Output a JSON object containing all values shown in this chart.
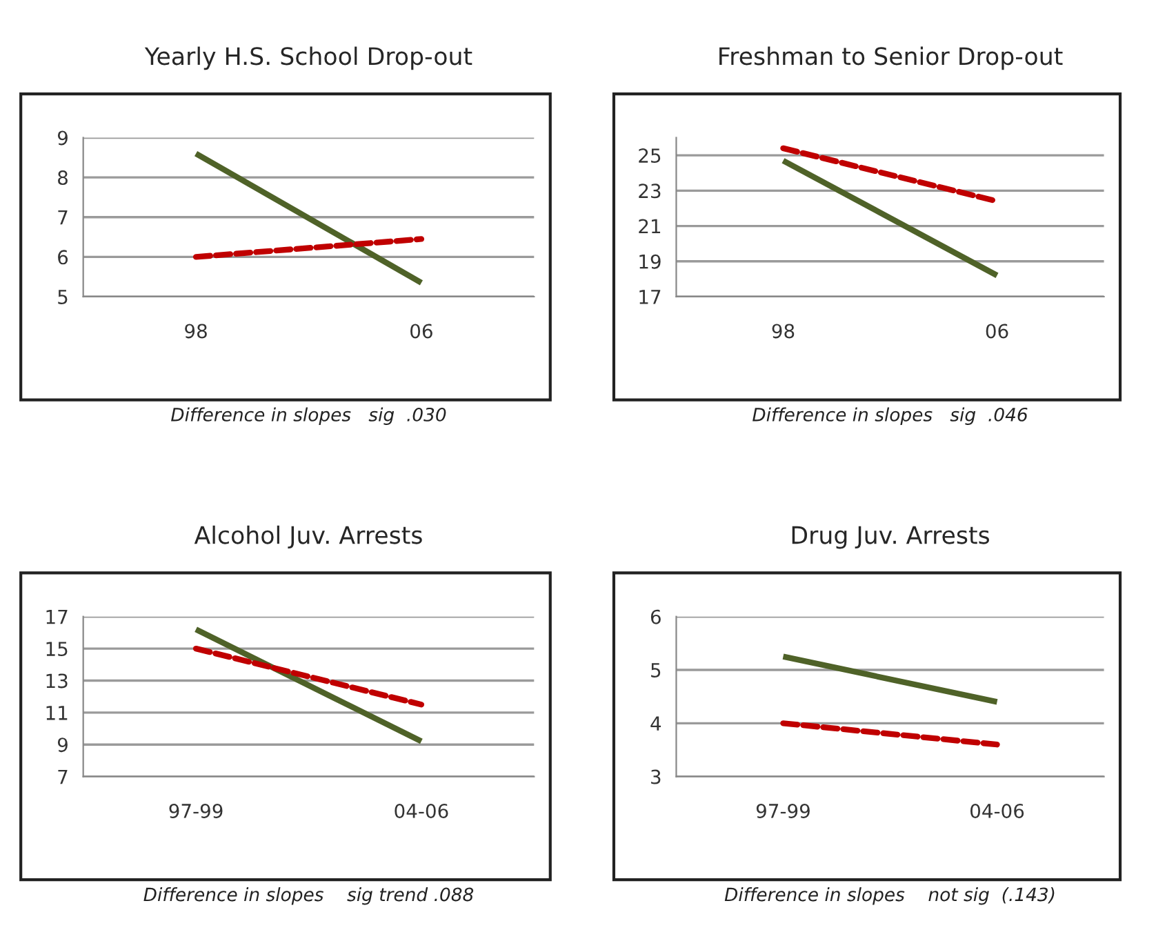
{
  "chart_data": [
    {
      "type": "line",
      "title": "Yearly H.S. School Drop-out",
      "categories": [
        "98",
        "06"
      ],
      "ylim": [
        5,
        9
      ],
      "yticks": [
        5,
        6,
        7,
        8,
        9
      ],
      "grid": "y",
      "annotations": [
        "Difference in slopes   sig  .030"
      ],
      "series": [
        {
          "color": "#4f6228",
          "values": [
            8.6,
            5.35
          ],
          "line_style": "solid"
        },
        {
          "color": "#c00000",
          "values": [
            6.0,
            6.45
          ],
          "line_style": "dashed"
        }
      ]
    },
    {
      "type": "line",
      "title": "Freshman to Senior Drop-out",
      "categories": [
        "98",
        "06"
      ],
      "ylim": [
        17,
        26
      ],
      "yticks": [
        17,
        19,
        21,
        23,
        25
      ],
      "grid": "y",
      "annotations": [
        "Difference in slopes   sig  .046"
      ],
      "series": [
        {
          "color": "#4f6228",
          "values": [
            24.7,
            18.2
          ],
          "line_style": "solid"
        },
        {
          "color": "#c00000",
          "values": [
            25.4,
            22.4
          ],
          "line_style": "dashed"
        }
      ]
    },
    {
      "type": "line",
      "title": "Alcohol Juv. Arrests",
      "categories": [
        "97-99",
        "04-06"
      ],
      "ylim": [
        7,
        17
      ],
      "yticks": [
        7,
        9,
        11,
        13,
        15,
        17
      ],
      "grid": "y",
      "annotations": [
        "Difference in slopes    sig trend .088"
      ],
      "series": [
        {
          "color": "#4f6228",
          "values": [
            16.2,
            9.2
          ],
          "line_style": "solid"
        },
        {
          "color": "#c00000",
          "values": [
            15.0,
            11.5
          ],
          "line_style": "dashed"
        }
      ]
    },
    {
      "type": "line",
      "title": "Drug Juv. Arrests",
      "categories": [
        "97-99",
        "04-06"
      ],
      "ylim": [
        3,
        6
      ],
      "yticks": [
        3,
        4,
        5,
        6
      ],
      "grid": "y",
      "annotations": [
        "Difference in slopes    not sig  (.143)"
      ],
      "series": [
        {
          "color": "#4f6228",
          "values": [
            5.25,
            4.4
          ],
          "line_style": "solid"
        },
        {
          "color": "#c00000",
          "values": [
            4.0,
            3.6
          ],
          "line_style": "dashed"
        }
      ]
    }
  ]
}
